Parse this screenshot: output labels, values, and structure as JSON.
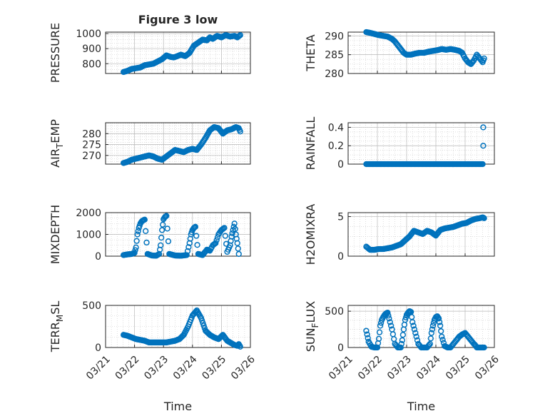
{
  "figure": {
    "title": "Figure 3 low",
    "marker_color": "#0072BD",
    "x_tick_labels": [
      "03/21",
      "03/22",
      "03/23",
      "03/24",
      "03/25",
      "03/26"
    ],
    "xlabel": "Time"
  },
  "chart_data": [
    {
      "id": "pressure",
      "type": "scatter",
      "title": "Figure 3 low",
      "ylabel": "PRESSURE",
      "ylabel_sub": "",
      "ylabel_tail": "",
      "xlim": [
        0,
        5
      ],
      "ylim": [
        735,
        1010
      ],
      "yticks": [
        800,
        900,
        1000
      ],
      "ytick_labels": [
        "800",
        "900",
        "1000"
      ],
      "xticks": [
        0,
        1,
        2,
        3,
        4,
        5
      ],
      "show_xtick_labels": false,
      "xlabel": "",
      "series": [
        {
          "name": "PRESSURE",
          "x": [
            0.62,
            0.75,
            0.9,
            1.05,
            1.2,
            1.35,
            1.5,
            1.65,
            1.8,
            1.95,
            2.1,
            2.25,
            2.35,
            2.45,
            2.6,
            2.75,
            2.9,
            3.05,
            3.2,
            3.35,
            3.5,
            3.6,
            3.7,
            3.85,
            4.0,
            4.15,
            4.3,
            4.45,
            4.55,
            4.65
          ],
          "y": [
            745,
            752,
            765,
            770,
            775,
            790,
            795,
            800,
            815,
            830,
            855,
            845,
            842,
            848,
            860,
            850,
            872,
            920,
            940,
            960,
            955,
            975,
            965,
            985,
            975,
            990,
            980,
            985,
            975,
            990
          ]
        }
      ]
    },
    {
      "id": "theta",
      "type": "scatter",
      "title": "",
      "ylabel": "THETA",
      "ylabel_sub": "",
      "ylabel_tail": "",
      "xlim": [
        0,
        5
      ],
      "ylim": [
        280,
        291
      ],
      "yticks": [
        280,
        285,
        290
      ],
      "ytick_labels": [
        "280",
        "285",
        "290"
      ],
      "xticks": [
        0,
        1,
        2,
        3,
        4,
        5
      ],
      "show_xtick_labels": false,
      "xlabel": "",
      "series": [
        {
          "name": "THETA",
          "x": [
            0.62,
            0.75,
            0.9,
            1.05,
            1.2,
            1.35,
            1.5,
            1.6,
            1.7,
            1.8,
            1.9,
            2.0,
            2.15,
            2.3,
            2.45,
            2.6,
            2.75,
            2.9,
            3.05,
            3.2,
            3.35,
            3.5,
            3.65,
            3.8,
            3.9,
            4.0,
            4.1,
            4.2,
            4.3,
            4.4,
            4.5,
            4.6,
            4.65
          ],
          "y": [
            291,
            290.8,
            290.5,
            290.2,
            290,
            289.8,
            289.2,
            288.5,
            287.5,
            286.5,
            285.5,
            285,
            285,
            285.3,
            285.5,
            285.5,
            285.8,
            286,
            286.2,
            286.5,
            286.3,
            286.5,
            286.3,
            286,
            285.5,
            284,
            283,
            282.5,
            283.5,
            285,
            284,
            283,
            284
          ]
        }
      ]
    },
    {
      "id": "air_temp",
      "type": "scatter",
      "title": "",
      "ylabel": "AIR",
      "ylabel_sub": "T",
      "ylabel_tail": "EMP",
      "xlim": [
        0,
        5
      ],
      "ylim": [
        266,
        285
      ],
      "yticks": [
        270,
        275,
        280
      ],
      "ytick_labels": [
        "270",
        "275",
        "280"
      ],
      "xticks": [
        0,
        1,
        2,
        3,
        4,
        5
      ],
      "show_xtick_labels": false,
      "xlabel": "",
      "series": [
        {
          "name": "AIR_TEMP",
          "x": [
            0.62,
            0.75,
            0.9,
            1.05,
            1.2,
            1.35,
            1.5,
            1.65,
            1.8,
            1.95,
            2.1,
            2.25,
            2.4,
            2.55,
            2.7,
            2.85,
            3.0,
            3.15,
            3.3,
            3.45,
            3.6,
            3.75,
            3.9,
            4.05,
            4.2,
            4.35,
            4.5,
            4.6,
            4.65
          ],
          "y": [
            266.5,
            267,
            268,
            268.5,
            269,
            269.5,
            270,
            269.5,
            268.5,
            268,
            269.5,
            271,
            272.5,
            272,
            271.5,
            272.5,
            273,
            272.5,
            275,
            278,
            281.5,
            283,
            282.5,
            280,
            281.5,
            282,
            283,
            282.5,
            281
          ]
        }
      ]
    },
    {
      "id": "rainfall",
      "type": "scatter",
      "title": "",
      "ylabel": "RAINFALL",
      "ylabel_sub": "",
      "ylabel_tail": "",
      "xlim": [
        0,
        5
      ],
      "ylim": [
        0,
        0.45
      ],
      "yticks": [
        0,
        0.2,
        0.4
      ],
      "ytick_labels": [
        "0",
        "0.2",
        "0.4"
      ],
      "xticks": [
        0,
        1,
        2,
        3,
        4,
        5
      ],
      "show_xtick_labels": false,
      "xlabel": "",
      "series": [
        {
          "name": "RAINFALL",
          "x": [
            0.62,
            0.75,
            0.9,
            1.05,
            1.2,
            1.35,
            1.5,
            1.65,
            1.8,
            1.95,
            2.1,
            2.25,
            2.4,
            2.55,
            2.7,
            2.85,
            3.0,
            3.15,
            3.3,
            3.45,
            3.6,
            3.75,
            3.9,
            4.05,
            4.2,
            4.35,
            4.5,
            4.6,
            4.62,
            4.62
          ],
          "y": [
            0,
            0,
            0,
            0,
            0,
            0,
            0,
            0,
            0,
            0,
            0,
            0,
            0,
            0,
            0,
            0,
            0,
            0,
            0,
            0,
            0,
            0,
            0,
            0,
            0,
            0,
            0,
            0,
            0.2,
            0.4
          ]
        }
      ]
    },
    {
      "id": "mixdepth",
      "type": "scatter",
      "title": "",
      "ylabel": "MIXDEPTH",
      "ylabel_sub": "",
      "ylabel_tail": "",
      "xlim": [
        0,
        5
      ],
      "ylim": [
        0,
        2000
      ],
      "yticks": [
        0,
        1000,
        2000
      ],
      "ytick_labels": [
        "0",
        "1000",
        "2000"
      ],
      "xticks": [
        0,
        1,
        2,
        3,
        4,
        5
      ],
      "show_xtick_labels": false,
      "xlabel": "",
      "series": [
        {
          "name": "MIXDEPTH",
          "x": [
            0.62,
            0.75,
            0.9,
            1.0,
            1.05,
            1.1,
            1.15,
            1.2,
            1.25,
            1.3,
            1.35,
            1.45,
            1.6,
            1.75,
            1.85,
            1.9,
            1.95,
            2.0,
            2.05,
            2.1,
            2.2,
            2.4,
            2.6,
            2.8,
            2.9,
            2.95,
            3.0,
            3.05,
            3.1,
            3.2,
            3.35,
            3.5,
            3.6,
            3.7,
            3.8,
            3.9,
            4.0,
            4.1,
            4.2,
            4.3,
            4.35,
            4.4,
            4.45,
            4.5,
            4.55,
            4.6
          ],
          "y": [
            50,
            80,
            100,
            150,
            400,
            1000,
            1300,
            1500,
            1600,
            1650,
            1680,
            100,
            30,
            20,
            100,
            500,
            1200,
            1700,
            1800,
            1850,
            100,
            30,
            20,
            50,
            600,
            1000,
            1200,
            1300,
            1350,
            100,
            50,
            300,
            250,
            500,
            600,
            1000,
            1200,
            1300,
            200,
            500,
            900,
            1200,
            1500,
            1000,
            600,
            100
          ]
        }
      ]
    },
    {
      "id": "h2omixra",
      "type": "scatter",
      "title": "",
      "ylabel": "H2OMIXRA",
      "ylabel_sub": "",
      "ylabel_tail": "",
      "xlim": [
        0,
        5
      ],
      "ylim": [
        0,
        5.5
      ],
      "yticks": [
        0,
        5
      ],
      "ytick_labels": [
        "0",
        "5"
      ],
      "xticks": [
        0,
        1,
        2,
        3,
        4,
        5
      ],
      "show_xtick_labels": false,
      "xlabel": "",
      "series": [
        {
          "name": "H2OMIXRA",
          "x": [
            0.62,
            0.75,
            0.9,
            1.05,
            1.2,
            1.35,
            1.5,
            1.65,
            1.8,
            1.95,
            2.1,
            2.25,
            2.4,
            2.55,
            2.7,
            2.85,
            3.0,
            3.15,
            3.3,
            3.45,
            3.6,
            3.75,
            3.9,
            4.05,
            4.2,
            4.35,
            4.5,
            4.6,
            4.65
          ],
          "y": [
            1.2,
            0.8,
            0.8,
            0.9,
            0.9,
            1,
            1.1,
            1.3,
            1.5,
            2,
            2.5,
            3.2,
            3,
            2.8,
            3.2,
            3,
            2.6,
            3.3,
            3.5,
            3.6,
            3.7,
            3.9,
            4.1,
            4.2,
            4.5,
            4.7,
            4.8,
            4.9,
            4.8
          ]
        }
      ]
    },
    {
      "id": "terr_msl",
      "type": "scatter",
      "title": "",
      "ylabel": "TERR",
      "ylabel_sub": "M",
      "ylabel_tail": "SL",
      "xlim": [
        0,
        5
      ],
      "ylim": [
        0,
        500
      ],
      "yticks": [
        0,
        500
      ],
      "ytick_labels": [
        "0",
        "500"
      ],
      "xticks": [
        0,
        1,
        2,
        3,
        4,
        5
      ],
      "show_xtick_labels": false,
      "xlabel": "Time",
      "series": [
        {
          "name": "TERR_MSL",
          "x": [
            0.62,
            0.75,
            0.9,
            1.05,
            1.2,
            1.35,
            1.5,
            1.65,
            1.8,
            1.95,
            2.1,
            2.25,
            2.4,
            2.55,
            2.7,
            2.85,
            3.0,
            3.15,
            3.3,
            3.45,
            3.6,
            3.75,
            3.9,
            4.05,
            4.2,
            4.35,
            4.45,
            4.55,
            4.6,
            4.65
          ],
          "y": [
            150,
            140,
            120,
            100,
            90,
            80,
            60,
            60,
            60,
            60,
            60,
            70,
            80,
            100,
            150,
            250,
            380,
            440,
            350,
            200,
            150,
            120,
            100,
            150,
            80,
            50,
            30,
            20,
            40,
            10
          ]
        }
      ]
    },
    {
      "id": "sun_flux",
      "type": "scatter",
      "title": "",
      "ylabel": "SUN",
      "ylabel_sub": "F",
      "ylabel_tail": "LUX",
      "xlim": [
        0,
        5
      ],
      "ylim": [
        0,
        580
      ],
      "yticks": [
        0,
        500
      ],
      "ytick_labels": [
        "0",
        "500"
      ],
      "xticks": [
        0,
        1,
        2,
        3,
        4,
        5
      ],
      "show_xtick_labels": false,
      "xlabel": "Time",
      "series": [
        {
          "name": "SUN_FLUX",
          "x": [
            0.62,
            0.65,
            0.7,
            0.8,
            0.9,
            1.0,
            1.05,
            1.1,
            1.15,
            1.2,
            1.25,
            1.3,
            1.35,
            1.4,
            1.5,
            1.6,
            1.7,
            1.8,
            1.85,
            1.9,
            1.95,
            2.0,
            2.05,
            2.1,
            2.15,
            2.2,
            2.3,
            2.4,
            2.5,
            2.6,
            2.7,
            2.8,
            2.85,
            2.9,
            2.95,
            3.0,
            3.05,
            3.1,
            3.15,
            3.2,
            3.3,
            3.4,
            3.5,
            3.6,
            3.7,
            3.8,
            3.9,
            4.0,
            4.1,
            4.2,
            4.3,
            4.35,
            4.4,
            4.45,
            4.5,
            4.55,
            4.6,
            4.65
          ],
          "y": [
            230,
            180,
            80,
            10,
            0,
            0,
            120,
            300,
            380,
            420,
            450,
            470,
            480,
            400,
            250,
            50,
            0,
            0,
            100,
            250,
            380,
            450,
            480,
            500,
            490,
            350,
            200,
            50,
            0,
            0,
            0,
            50,
            200,
            300,
            380,
            420,
            430,
            400,
            300,
            150,
            20,
            0,
            0,
            50,
            100,
            150,
            180,
            200,
            150,
            100,
            50,
            30,
            0,
            0,
            0,
            0,
            0,
            0
          ]
        }
      ]
    }
  ]
}
